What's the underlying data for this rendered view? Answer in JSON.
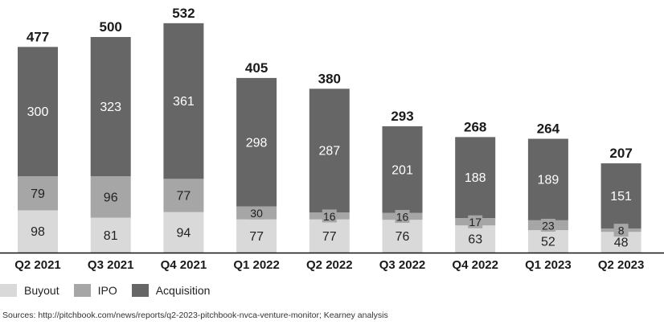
{
  "chart_data": {
    "type": "bar",
    "stacked": true,
    "categories": [
      "Q2 2021",
      "Q3 2021",
      "Q4 2021",
      "Q1 2022",
      "Q2 2022",
      "Q3 2022",
      "Q4 2022",
      "Q1 2023",
      "Q2 2023"
    ],
    "series": [
      {
        "name": "Buyout",
        "color": "#d9d9d9",
        "values": [
          98,
          81,
          94,
          77,
          77,
          76,
          63,
          52,
          48
        ]
      },
      {
        "name": "IPO",
        "color": "#a6a6a6",
        "values": [
          79,
          96,
          77,
          30,
          16,
          16,
          17,
          23,
          8
        ]
      },
      {
        "name": "Acquisition",
        "color": "#666666",
        "values": [
          300,
          323,
          361,
          298,
          287,
          201,
          188,
          189,
          151
        ]
      }
    ],
    "totals": [
      477,
      500,
      532,
      405,
      380,
      293,
      268,
      264,
      207
    ],
    "title": "",
    "xlabel": "",
    "ylabel": "",
    "ylim": [
      0,
      532
    ],
    "grid": false,
    "legend_position": "bottom-left"
  },
  "source_note": "Sources: http://pitchbook.com/news/reports/q2-2023-pitchbook-nvca-venture-monitor; Kearney analysis"
}
